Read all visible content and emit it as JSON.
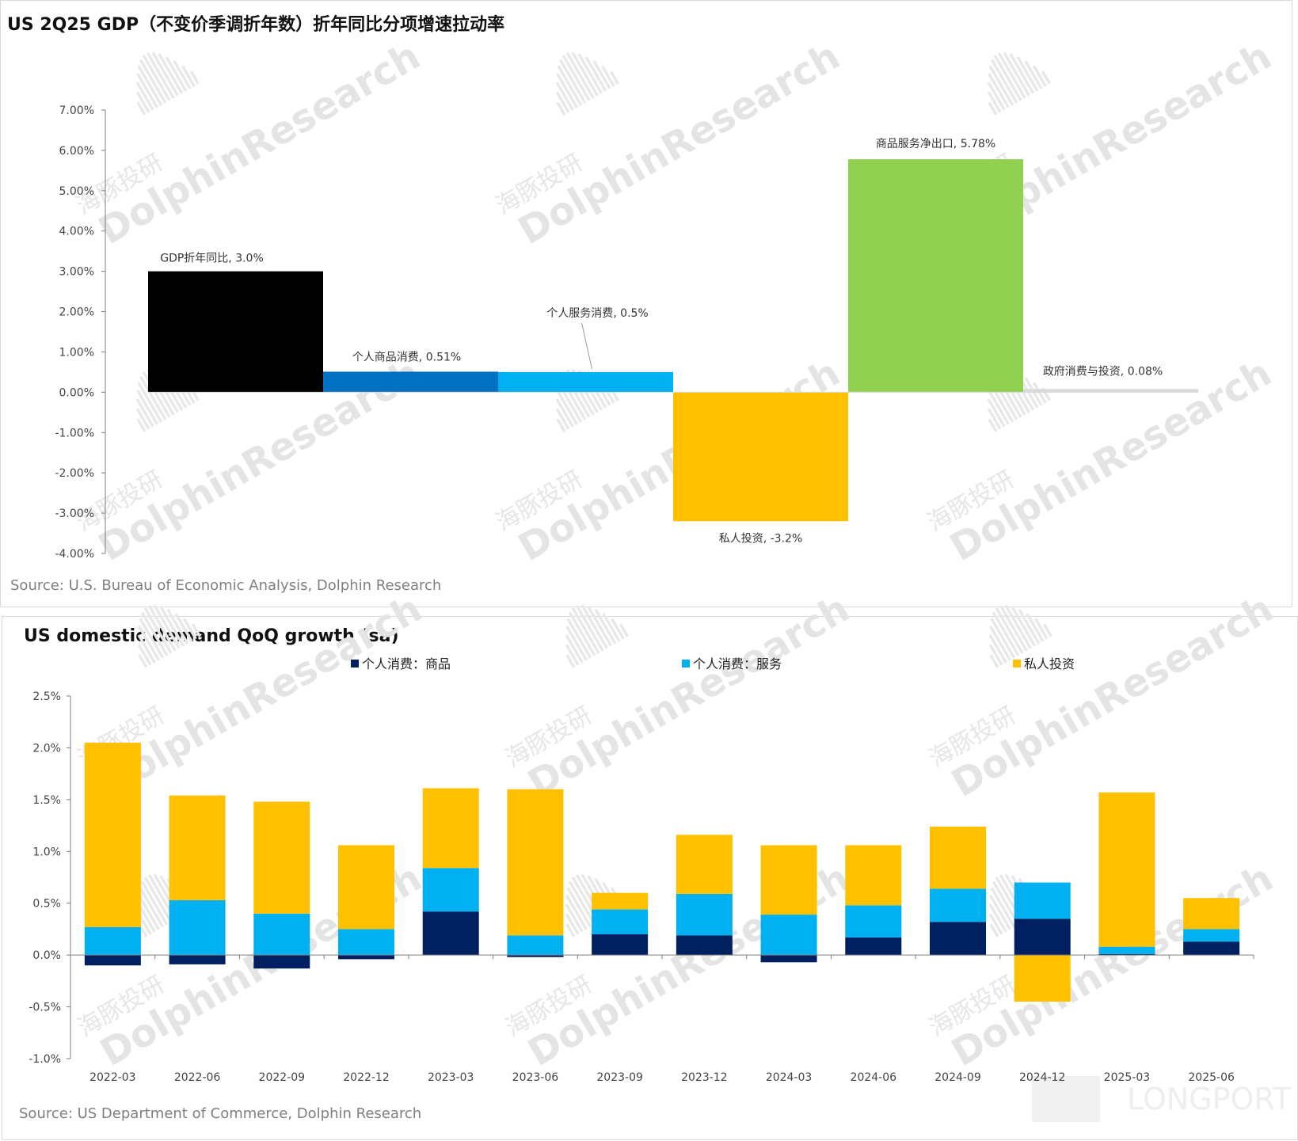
{
  "panel1": {
    "title": "US 2Q25 GDP（不变价季调折年数）折年同比分项增速拉动率",
    "source": "Source: U.S. Bureau of Economic Analysis, Dolphin Research"
  },
  "panel2": {
    "title": "US domestic demand  QoQ growth (sa)",
    "source": "Source: US Department of Commerce, Dolphin Research"
  },
  "watermark": {
    "en": "DolphinResearch",
    "cn": "海豚投研",
    "brand": "LONGPORT"
  },
  "chart_data": [
    {
      "type": "bar",
      "subtype": "waterfall",
      "title": "US 2Q25 GDP（不变价季调折年数）折年同比分项增速拉动率",
      "categories": [
        "GDP折年同比",
        "个人商品消费",
        "个人服务消费",
        "私人投资",
        "商品服务净出口",
        "政府消费与投资"
      ],
      "values": [
        3.0,
        0.51,
        0.5,
        -3.2,
        5.78,
        0.08
      ],
      "data_labels": [
        "GDP折年同比, 3.0%",
        "个人商品消费, 0.51%",
        "个人服务消费, 0.5%",
        "私人投资, -3.2%",
        "商品服务净出口, 5.78%",
        "政府消费与投资, 0.08%"
      ],
      "colors": [
        "#000000",
        "#0070C0",
        "#00B0F0",
        "#FFC000",
        "#92D050",
        "#D9D9D9"
      ],
      "ylim": [
        -4.0,
        7.0
      ],
      "yticks": [
        "7.00%",
        "6.00%",
        "5.00%",
        "4.00%",
        "3.00%",
        "2.00%",
        "1.00%",
        "0.00%",
        "-1.00%",
        "-2.00%",
        "-3.00%",
        "-4.00%"
      ],
      "xlabel": "",
      "ylabel": "",
      "grid": false
    },
    {
      "type": "bar",
      "subtype": "stacked",
      "title": "US domestic demand  QoQ growth (sa)",
      "categories": [
        "2022-03",
        "2022-06",
        "2022-09",
        "2022-12",
        "2023-03",
        "2023-06",
        "2023-09",
        "2023-12",
        "2024-03",
        "2024-06",
        "2024-09",
        "2024-12",
        "2025-03",
        "2025-06"
      ],
      "series": [
        {
          "name": "个人消费：商品",
          "color": "#002060",
          "values": [
            -0.1,
            -0.09,
            -0.13,
            -0.04,
            0.42,
            -0.02,
            0.2,
            0.19,
            -0.07,
            0.17,
            0.32,
            0.35,
            0.01,
            0.13
          ]
        },
        {
          "name": "个人消费：服务",
          "color": "#00B0F0",
          "values": [
            0.27,
            0.53,
            0.4,
            0.25,
            0.42,
            0.19,
            0.24,
            0.4,
            0.39,
            0.31,
            0.32,
            0.35,
            0.07,
            0.12
          ]
        },
        {
          "name": "私人投资",
          "color": "#FFC000",
          "values": [
            1.78,
            1.01,
            1.08,
            0.81,
            0.77,
            1.41,
            0.16,
            0.57,
            0.67,
            0.58,
            0.6,
            -0.45,
            1.49,
            0.3
          ]
        }
      ],
      "ylim": [
        -1.0,
        2.5
      ],
      "yticks": [
        "2.5%",
        "2.0%",
        "1.5%",
        "1.0%",
        "0.5%",
        "0.0%",
        "-0.5%",
        "-1.0%"
      ],
      "legend_position": "top",
      "xlabel": "",
      "ylabel": "",
      "grid": false
    }
  ]
}
